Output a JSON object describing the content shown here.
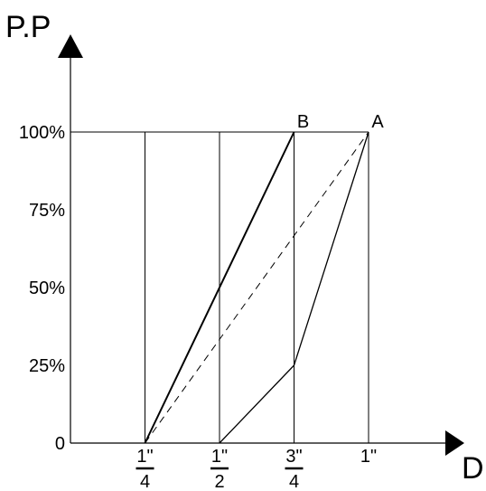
{
  "chart_data": {
    "type": "line",
    "ylabel": "P.P",
    "xlabel": "D",
    "y_ticks": [
      {
        "value": 0,
        "label": "0"
      },
      {
        "value": 25,
        "label": "25%"
      },
      {
        "value": 50,
        "label": "50%"
      },
      {
        "value": 75,
        "label": "75%"
      },
      {
        "value": 100,
        "label": "100%"
      }
    ],
    "x_ticks": [
      {
        "value": 0.25,
        "num": "1\"",
        "den": "4",
        "fraction": true
      },
      {
        "value": 0.5,
        "num": "1\"",
        "den": "2",
        "fraction": true
      },
      {
        "value": 0.75,
        "num": "3\"",
        "den": "4",
        "fraction": true
      },
      {
        "value": 1.0,
        "num": "1\"",
        "den": "",
        "fraction": false
      }
    ],
    "xlim": [
      0,
      1.2
    ],
    "ylim": [
      0,
      115
    ],
    "vertical_gridlines_at": [
      0.25,
      0.5,
      0.75,
      1.0
    ],
    "horizontal_reference_at": 100,
    "series": [
      {
        "style": "solid-bold",
        "x": [
          0.25,
          0.75
        ],
        "y": [
          0,
          100
        ]
      },
      {
        "style": "dashed",
        "x": [
          0.25,
          1.0
        ],
        "y": [
          0,
          100
        ]
      },
      {
        "style": "solid",
        "x": [
          0.5,
          0.75,
          1.0
        ],
        "y": [
          0,
          25,
          100
        ]
      }
    ],
    "point_labels": [
      {
        "label": "B",
        "x": 0.75,
        "y": 100
      },
      {
        "label": "A",
        "x": 1.0,
        "y": 100
      }
    ]
  }
}
